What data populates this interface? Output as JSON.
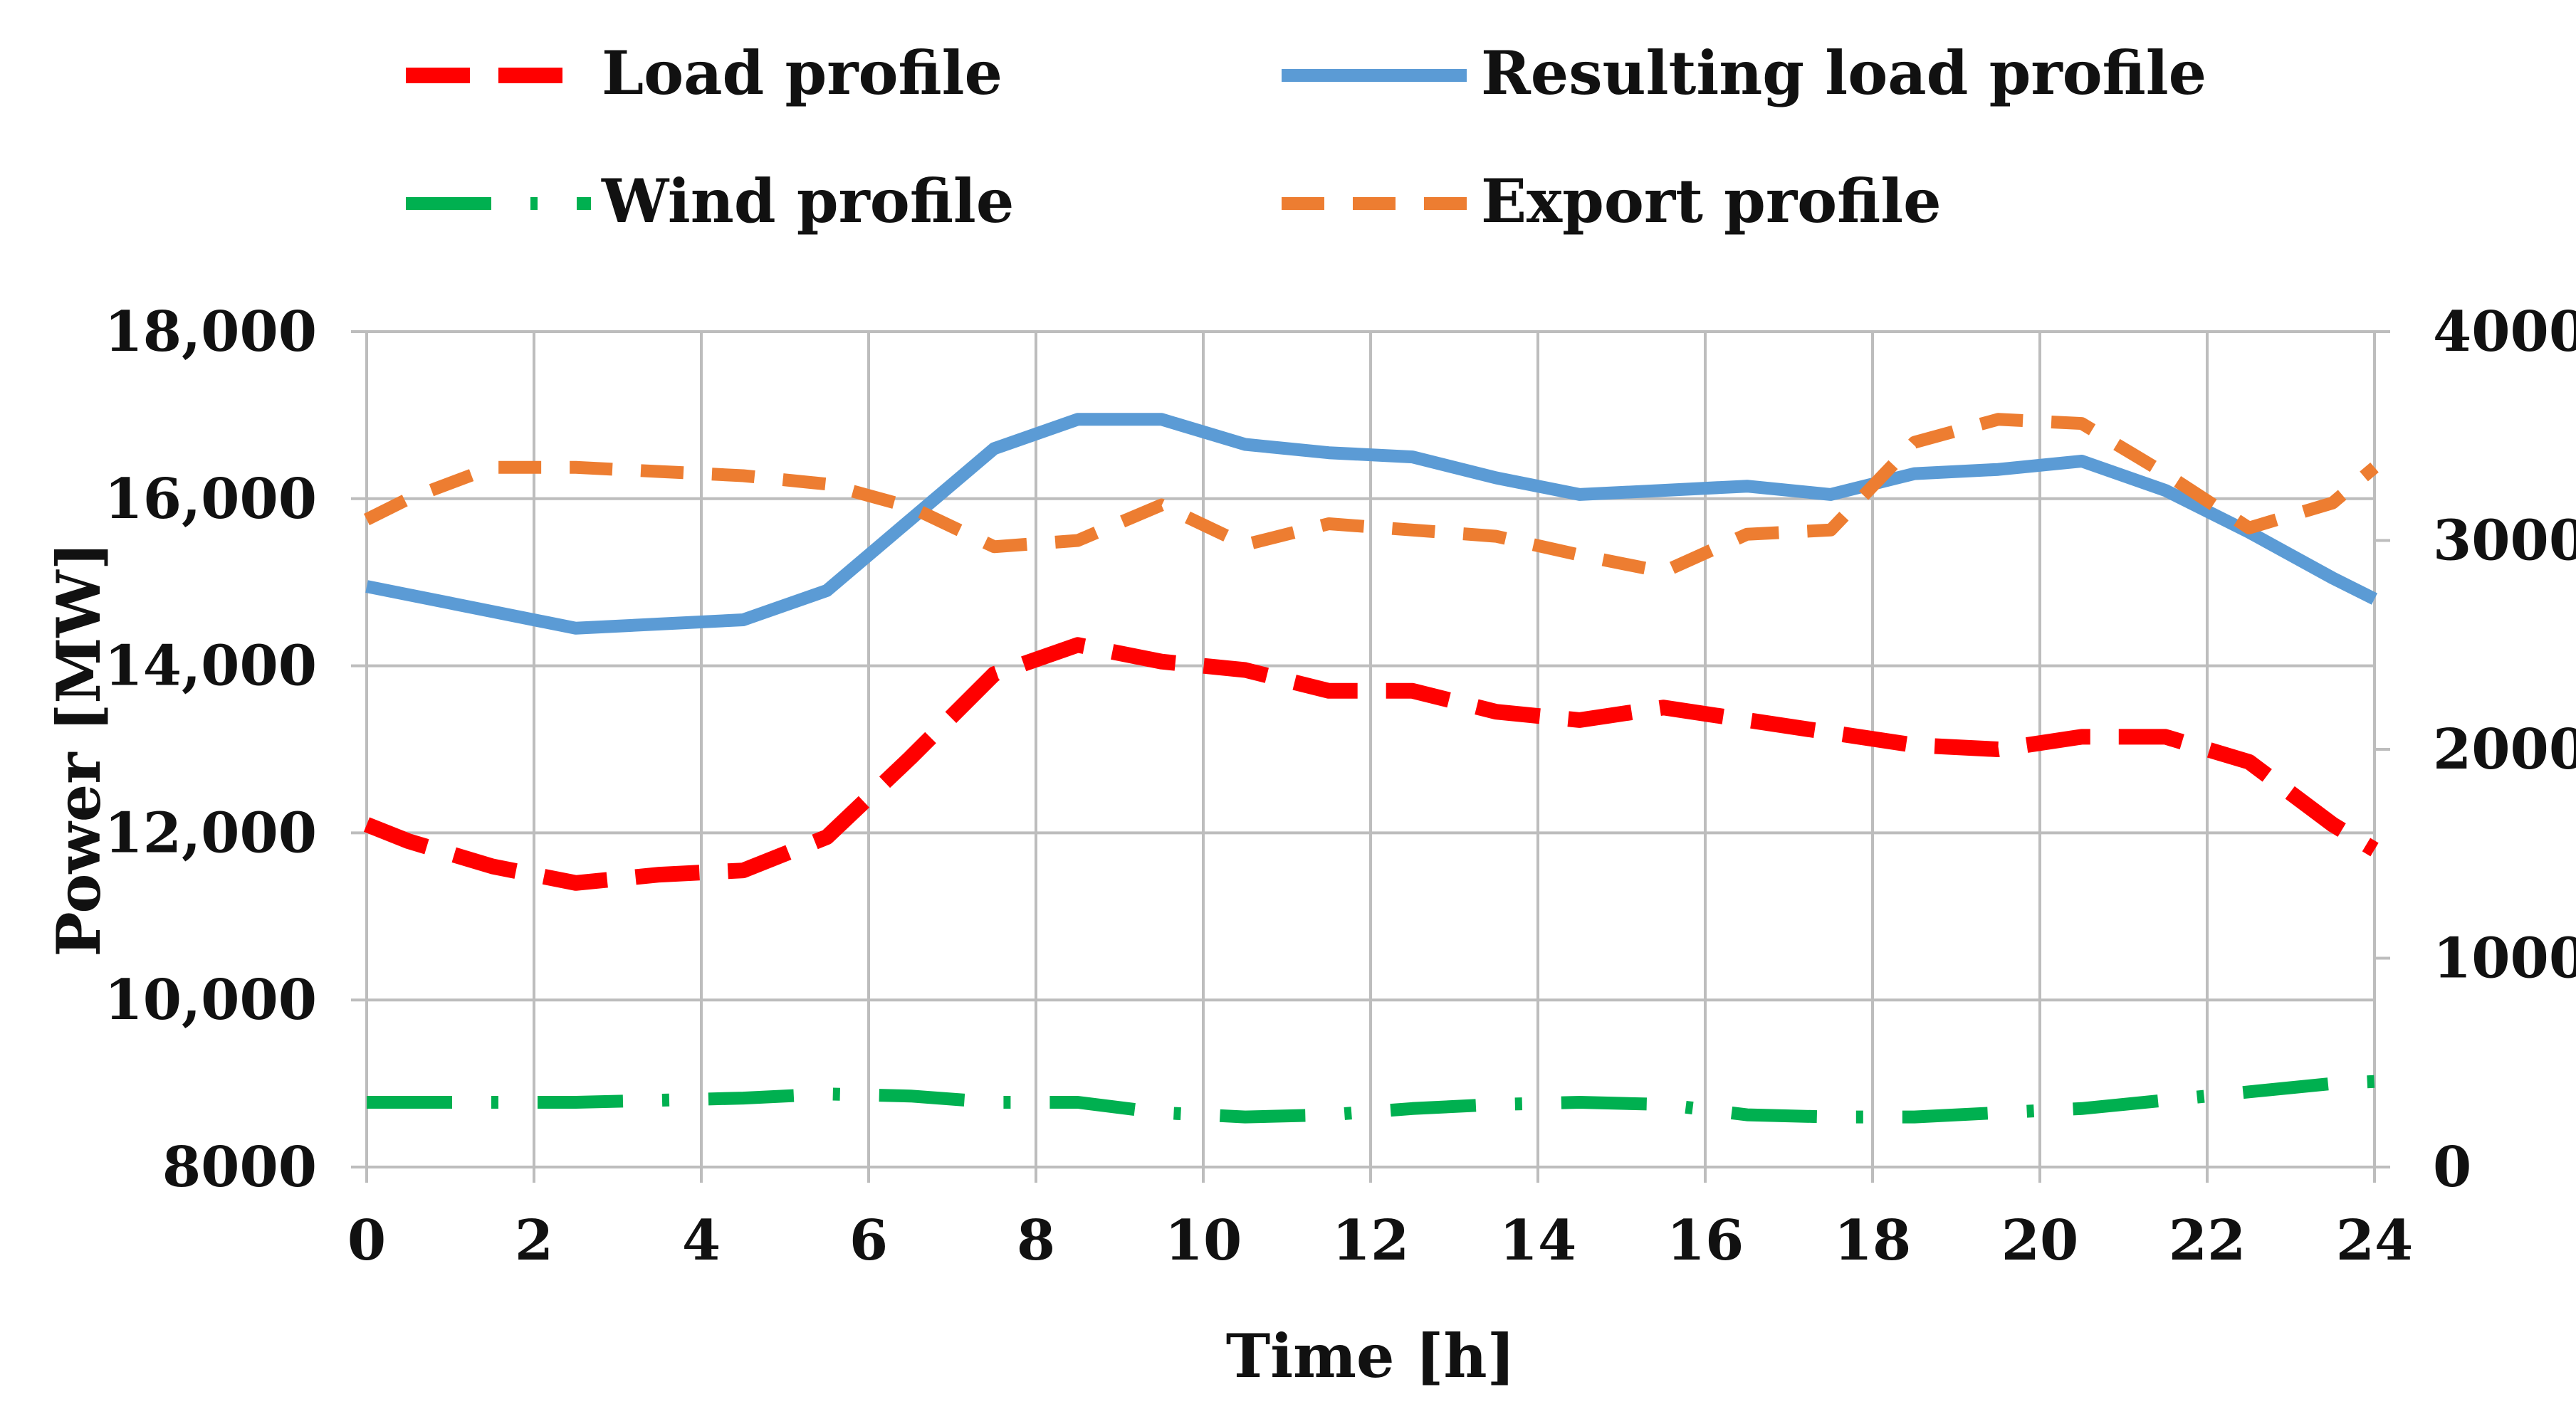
{
  "chart_data": {
    "type": "line",
    "title": "",
    "xlabel": "Time [h]",
    "ylabel": "Power [MW]",
    "xlim": [
      0,
      24
    ],
    "ylim": [
      8000,
      18000
    ],
    "y2lim": [
      0,
      4000
    ],
    "x_ticks": [
      0,
      2,
      4,
      6,
      8,
      10,
      12,
      14,
      16,
      18,
      20,
      22,
      24
    ],
    "x_tick_labels": [
      "0",
      "2",
      "4",
      "6",
      "8",
      "10",
      "12",
      "14",
      "16",
      "18",
      "20",
      "22",
      "24"
    ],
    "y_ticks": [
      8000,
      10000,
      12000,
      14000,
      16000,
      18000
    ],
    "y_tick_labels": [
      "8000",
      "10,000",
      "12,000",
      "14,000",
      "16,000",
      "18,000"
    ],
    "y2_ticks": [
      0,
      1000,
      2000,
      3000,
      4000
    ],
    "y2_tick_labels": [
      "0",
      "1000",
      "2000",
      "3000",
      "4000"
    ],
    "grid": true,
    "legend_position": "top",
    "x": [
      0,
      0.5,
      1.5,
      2.5,
      3.5,
      4.5,
      5.5,
      6.5,
      7.5,
      8.5,
      9.5,
      10.5,
      11.5,
      12.5,
      13.5,
      14.5,
      15.5,
      16.5,
      17.5,
      18.5,
      19.5,
      20.5,
      21.5,
      22.5,
      23.5,
      24
    ],
    "series": [
      {
        "name": "Load profile",
        "axis": "left",
        "color": "#ff0000",
        "style": "long-dash",
        "values": [
          12100,
          11900,
          11600,
          11400,
          11500,
          11550,
          11950,
          12900,
          13900,
          14250,
          14050,
          13950,
          13700,
          13700,
          13450,
          13350,
          13500,
          13350,
          13200,
          13050,
          13000,
          13150,
          13150,
          12850,
          12100,
          11800
        ]
      },
      {
        "name": "Resulting load profile",
        "axis": "left",
        "color": "#5b9bd5",
        "style": "solid",
        "values": [
          14950,
          14850,
          14650,
          14450,
          14500,
          14550,
          14900,
          15750,
          16600,
          16950,
          16950,
          16650,
          16550,
          16500,
          16250,
          16050,
          16100,
          16150,
          16050,
          16300,
          16350,
          16450,
          16100,
          15600,
          15050,
          14800
        ]
      },
      {
        "name": "Wind profile",
        "axis": "right",
        "color": "#00b050",
        "style": "dash-dot",
        "values": [
          310,
          310,
          310,
          310,
          320,
          330,
          350,
          340,
          310,
          310,
          260,
          240,
          250,
          280,
          300,
          310,
          300,
          250,
          240,
          240,
          260,
          280,
          320,
          360,
          400,
          410
        ]
      },
      {
        "name": "Export profile",
        "axis": "right",
        "color": "#ed7d31",
        "style": "short-dash",
        "values": [
          3100,
          3200,
          3350,
          3350,
          3330,
          3310,
          3270,
          3160,
          2970,
          3000,
          3170,
          2980,
          3080,
          3050,
          3020,
          2930,
          2850,
          3030,
          3050,
          3470,
          3580,
          3560,
          3320,
          3060,
          3180,
          3350
        ]
      }
    ]
  }
}
